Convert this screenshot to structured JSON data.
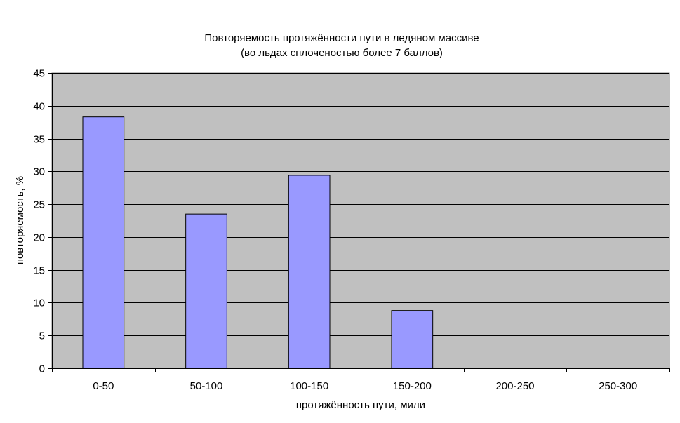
{
  "chart_data": {
    "type": "bar",
    "title": "Повторяемость протяжённости пути в ледяном массиве",
    "subtitle": "(во льдах сплоченостью более 7 баллов)",
    "xlabel": "протяжённость пути, мили",
    "ylabel": "повторяемость, %",
    "categories": [
      "0-50",
      "50-100",
      "100-150",
      "150-200",
      "200-250",
      "250-300"
    ],
    "values": [
      38.3,
      23.5,
      29.4,
      8.8,
      0,
      0
    ],
    "ylim": [
      0,
      45
    ],
    "ytick_step": 5,
    "grid": true,
    "legend": "none",
    "colors": {
      "bar": "#9999ff",
      "plot_background": "#c0c0c0",
      "gridline": "#000000",
      "bar_border": "#000000"
    }
  }
}
